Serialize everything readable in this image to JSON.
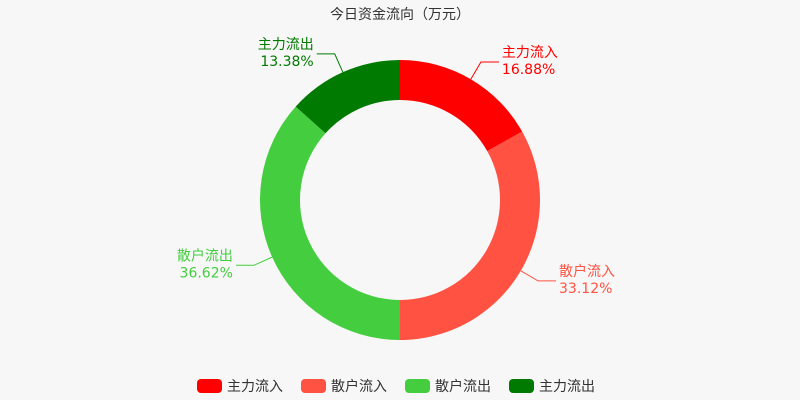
{
  "chart_data": {
    "type": "donut",
    "title": "今日资金流向（万元）",
    "categories": [
      "主力流入",
      "散户流入",
      "散户流出",
      "主力流出"
    ],
    "values": [
      16.88,
      33.12,
      36.62,
      13.38
    ],
    "value_labels": [
      "16.88%",
      "33.12%",
      "36.62%",
      "13.38%"
    ],
    "colors": [
      "#ff0000",
      "#ff5242",
      "#43cd3f",
      "#007a00"
    ],
    "legend": "bottom"
  }
}
